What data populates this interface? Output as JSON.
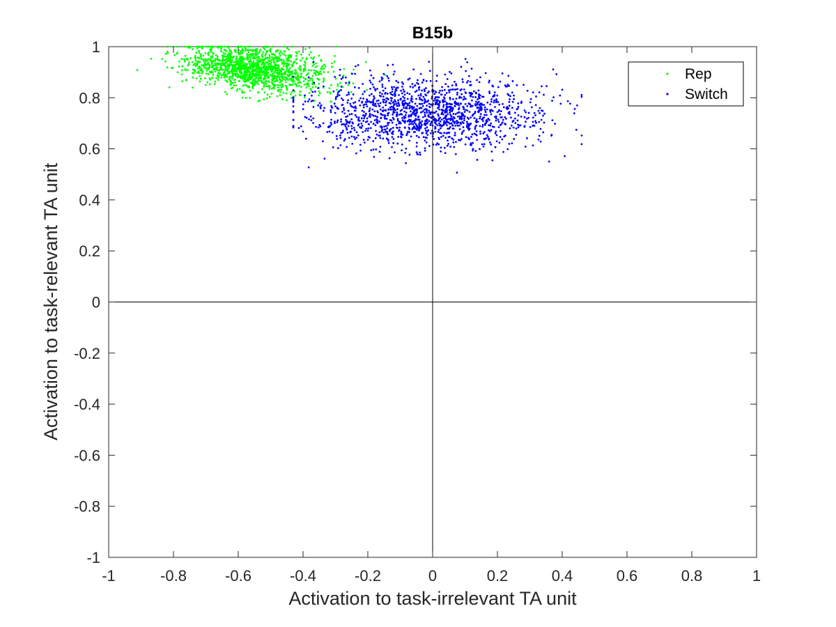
{
  "chart_data": {
    "type": "scatter",
    "title": "B15b",
    "xlabel": "Activation to task-irrelevant TA unit",
    "ylabel": "Activation to task-relevant TA unit",
    "xlim": [
      -1,
      1
    ],
    "ylim": [
      -1,
      1
    ],
    "xticks": [
      -1,
      -0.8,
      -0.6,
      -0.4,
      -0.2,
      0,
      0.2,
      0.4,
      0.6,
      0.8,
      1
    ],
    "xtick_labels": [
      "-1",
      "-0.8",
      "-0.6",
      "-0.4",
      "-0.2",
      "0",
      "0.2",
      "0.4",
      "0.6",
      "0.8",
      "1"
    ],
    "yticks": [
      -1,
      -0.8,
      -0.6,
      -0.4,
      -0.2,
      0,
      0.2,
      0.4,
      0.6,
      0.8,
      1
    ],
    "ytick_labels": [
      "-1",
      "-0.8",
      "-0.6",
      "-0.4",
      "-0.2",
      "0",
      "0.2",
      "0.4",
      "0.6",
      "0.8",
      "1"
    ],
    "grid": false,
    "zero_lines": true,
    "legend_position": "top-right",
    "series": [
      {
        "name": "Rep",
        "color": "#00ff00",
        "n_points": 1500,
        "distribution": {
          "x_mean": -0.55,
          "x_sd": 0.11,
          "y_mean": 0.915,
          "y_sd": 0.045,
          "x_range": [
            -0.98,
            -0.13
          ],
          "y_range": [
            0.75,
            1.0
          ]
        }
      },
      {
        "name": "Switch",
        "color": "#0000ff",
        "n_points": 1500,
        "distribution": {
          "x_mean": -0.02,
          "x_sd": 0.18,
          "y_mean": 0.74,
          "y_sd": 0.07,
          "x_range": [
            -0.43,
            0.46
          ],
          "y_range": [
            0.46,
            0.96
          ]
        }
      }
    ]
  }
}
